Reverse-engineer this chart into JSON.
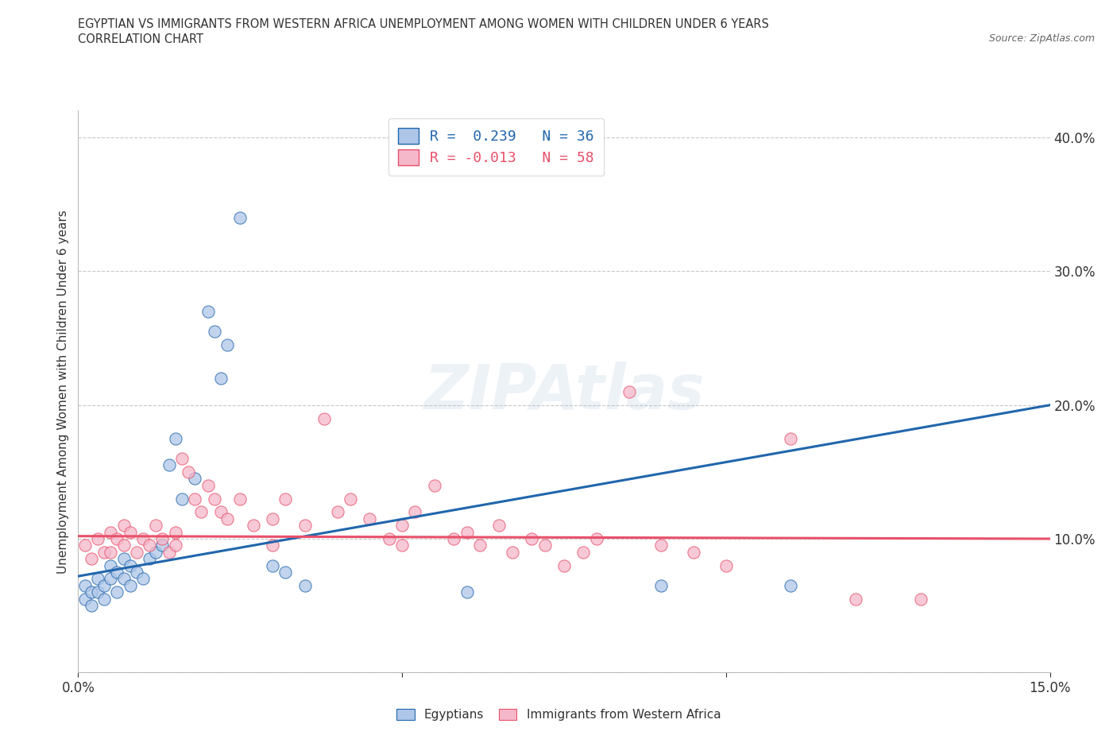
{
  "title_line1": "EGYPTIAN VS IMMIGRANTS FROM WESTERN AFRICA UNEMPLOYMENT AMONG WOMEN WITH CHILDREN UNDER 6 YEARS",
  "title_line2": "CORRELATION CHART",
  "source": "Source: ZipAtlas.com",
  "ylabel": "Unemployment Among Women with Children Under 6 years",
  "watermark": "ZIPAtlas",
  "xlim": [
    0.0,
    0.15
  ],
  "ylim": [
    0.0,
    0.42
  ],
  "xticks": [
    0.0,
    0.05,
    0.1,
    0.15
  ],
  "xtick_labels": [
    "0.0%",
    "",
    "",
    "15.0%"
  ],
  "yticks": [
    0.0,
    0.1,
    0.2,
    0.3,
    0.4
  ],
  "ytick_labels": [
    "",
    "10.0%",
    "20.0%",
    "30.0%",
    "40.0%"
  ],
  "r_egyptian": 0.239,
  "n_egyptian": 36,
  "r_western_africa": -0.013,
  "n_western_africa": 58,
  "legend_label_1": "Egyptians",
  "legend_label_2": "Immigrants from Western Africa",
  "egyptian_color": "#aec6e8",
  "western_africa_color": "#f5b8ca",
  "trend_egyptian_color": "#2166ac",
  "trend_western_africa_color": "#e8506a",
  "background_color": "#ffffff",
  "grid_color": "#c8c8c8",
  "egyptian_points": [
    [
      0.001,
      0.065
    ],
    [
      0.001,
      0.055
    ],
    [
      0.002,
      0.06
    ],
    [
      0.002,
      0.05
    ],
    [
      0.003,
      0.07
    ],
    [
      0.003,
      0.06
    ],
    [
      0.004,
      0.065
    ],
    [
      0.004,
      0.055
    ],
    [
      0.005,
      0.08
    ],
    [
      0.005,
      0.07
    ],
    [
      0.006,
      0.075
    ],
    [
      0.006,
      0.06
    ],
    [
      0.007,
      0.085
    ],
    [
      0.007,
      0.07
    ],
    [
      0.008,
      0.08
    ],
    [
      0.008,
      0.065
    ],
    [
      0.009,
      0.075
    ],
    [
      0.01,
      0.07
    ],
    [
      0.011,
      0.085
    ],
    [
      0.012,
      0.09
    ],
    [
      0.013,
      0.095
    ],
    [
      0.014,
      0.155
    ],
    [
      0.015,
      0.175
    ],
    [
      0.016,
      0.13
    ],
    [
      0.018,
      0.145
    ],
    [
      0.02,
      0.27
    ],
    [
      0.021,
      0.255
    ],
    [
      0.022,
      0.22
    ],
    [
      0.023,
      0.245
    ],
    [
      0.025,
      0.34
    ],
    [
      0.03,
      0.08
    ],
    [
      0.032,
      0.075
    ],
    [
      0.035,
      0.065
    ],
    [
      0.06,
      0.06
    ],
    [
      0.09,
      0.065
    ],
    [
      0.11,
      0.065
    ]
  ],
  "western_africa_points": [
    [
      0.001,
      0.095
    ],
    [
      0.002,
      0.085
    ],
    [
      0.003,
      0.1
    ],
    [
      0.004,
      0.09
    ],
    [
      0.005,
      0.105
    ],
    [
      0.005,
      0.09
    ],
    [
      0.006,
      0.1
    ],
    [
      0.007,
      0.11
    ],
    [
      0.007,
      0.095
    ],
    [
      0.008,
      0.105
    ],
    [
      0.009,
      0.09
    ],
    [
      0.01,
      0.1
    ],
    [
      0.011,
      0.095
    ],
    [
      0.012,
      0.11
    ],
    [
      0.013,
      0.1
    ],
    [
      0.014,
      0.09
    ],
    [
      0.015,
      0.105
    ],
    [
      0.015,
      0.095
    ],
    [
      0.016,
      0.16
    ],
    [
      0.017,
      0.15
    ],
    [
      0.018,
      0.13
    ],
    [
      0.019,
      0.12
    ],
    [
      0.02,
      0.14
    ],
    [
      0.021,
      0.13
    ],
    [
      0.022,
      0.12
    ],
    [
      0.023,
      0.115
    ],
    [
      0.025,
      0.13
    ],
    [
      0.027,
      0.11
    ],
    [
      0.03,
      0.115
    ],
    [
      0.03,
      0.095
    ],
    [
      0.032,
      0.13
    ],
    [
      0.035,
      0.11
    ],
    [
      0.038,
      0.19
    ],
    [
      0.04,
      0.12
    ],
    [
      0.042,
      0.13
    ],
    [
      0.045,
      0.115
    ],
    [
      0.048,
      0.1
    ],
    [
      0.05,
      0.11
    ],
    [
      0.05,
      0.095
    ],
    [
      0.052,
      0.12
    ],
    [
      0.055,
      0.14
    ],
    [
      0.058,
      0.1
    ],
    [
      0.06,
      0.105
    ],
    [
      0.062,
      0.095
    ],
    [
      0.065,
      0.11
    ],
    [
      0.067,
      0.09
    ],
    [
      0.07,
      0.1
    ],
    [
      0.072,
      0.095
    ],
    [
      0.075,
      0.08
    ],
    [
      0.078,
      0.09
    ],
    [
      0.08,
      0.1
    ],
    [
      0.085,
      0.21
    ],
    [
      0.09,
      0.095
    ],
    [
      0.095,
      0.09
    ],
    [
      0.1,
      0.08
    ],
    [
      0.11,
      0.175
    ],
    [
      0.12,
      0.055
    ],
    [
      0.13,
      0.055
    ]
  ],
  "trend_eg_x0": 0.0,
  "trend_eg_y0": 0.072,
  "trend_eg_x1": 0.15,
  "trend_eg_y1": 0.2,
  "trend_wa_x0": 0.0,
  "trend_wa_y0": 0.102,
  "trend_wa_x1": 0.15,
  "trend_wa_y1": 0.1
}
